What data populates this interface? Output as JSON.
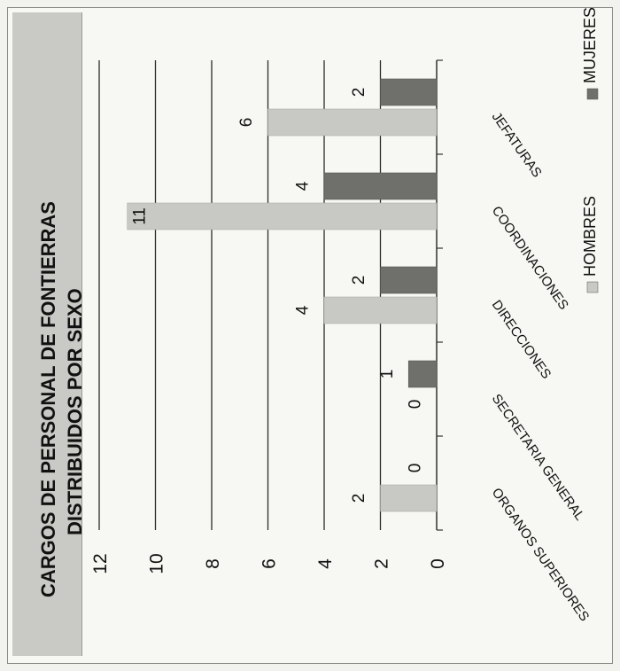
{
  "chart_data": {
    "type": "bar",
    "orientation": "vertical (image rotated 90°)",
    "title_lines": [
      "CARGOS DE PERSONAL DE FONTIERRAS",
      "DISTRIBUIDOS POR SEXO"
    ],
    "categories": [
      "ORGANOS SUPERIORES",
      "SECRETARIA GENERAL",
      "DIRECCIONES",
      "COORDINACIONES",
      "JEFATURAS"
    ],
    "series": [
      {
        "name": "HOMBRES",
        "values": [
          2,
          0,
          4,
          11,
          6
        ],
        "color": "#c8c8c4"
      },
      {
        "name": "MUJERES",
        "values": [
          0,
          1,
          2,
          4,
          2
        ],
        "color": "#6f6f6b"
      }
    ],
    "data_labels": {
      "HOMBRES": [
        "2",
        "0",
        "4",
        "11",
        "6"
      ],
      "MUJERES": [
        "0",
        "1",
        "2",
        "4",
        "2"
      ]
    },
    "ylim": [
      0,
      12
    ],
    "yticks": [
      "0",
      "2",
      "4",
      "6",
      "8",
      "10",
      "12"
    ],
    "grid": true,
    "legend": "right"
  }
}
